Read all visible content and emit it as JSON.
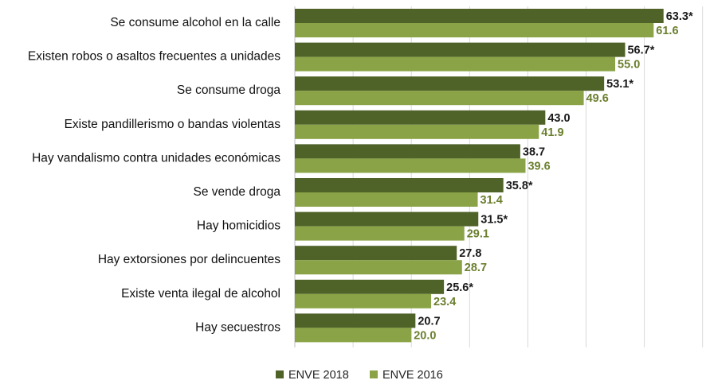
{
  "chart_data": {
    "type": "bar",
    "orientation": "horizontal",
    "categories": [
      "Se consume alcohol en la calle",
      "Existen robos o asaltos frecuentes a unidades",
      "Se consume droga",
      "Existe pandillerismo o bandas violentas",
      "Hay vandalismo contra unidades económicas",
      "Se vende droga",
      "Hay homicidios",
      "Hay extorsiones por delincuentes",
      "Existe venta ilegal de alcohol",
      "Hay secuestros"
    ],
    "series": [
      {
        "name": "ENVE 2018",
        "color": "#4f6228",
        "label_color": "#1a1a1a",
        "values": [
          63.3,
          56.7,
          53.1,
          43.0,
          38.7,
          35.8,
          31.5,
          27.8,
          25.6,
          20.7
        ],
        "labels": [
          "63.3*",
          "56.7*",
          "53.1*",
          "43.0",
          "38.7",
          "35.8*",
          "31.5*",
          "27.8",
          "25.6*",
          "20.7"
        ]
      },
      {
        "name": "ENVE 2016",
        "color": "#8aa346",
        "label_color": "#6b7f2e",
        "values": [
          61.6,
          55.0,
          49.6,
          41.9,
          39.6,
          31.4,
          29.1,
          28.7,
          23.4,
          20.0
        ],
        "labels": [
          "61.6",
          "55.0",
          "49.6",
          "41.9",
          "39.6",
          "31.4",
          "29.1",
          "28.7",
          "23.4",
          "20.0"
        ]
      }
    ],
    "xlim": [
      0,
      70
    ],
    "grid": true,
    "legend_position": "bottom"
  }
}
